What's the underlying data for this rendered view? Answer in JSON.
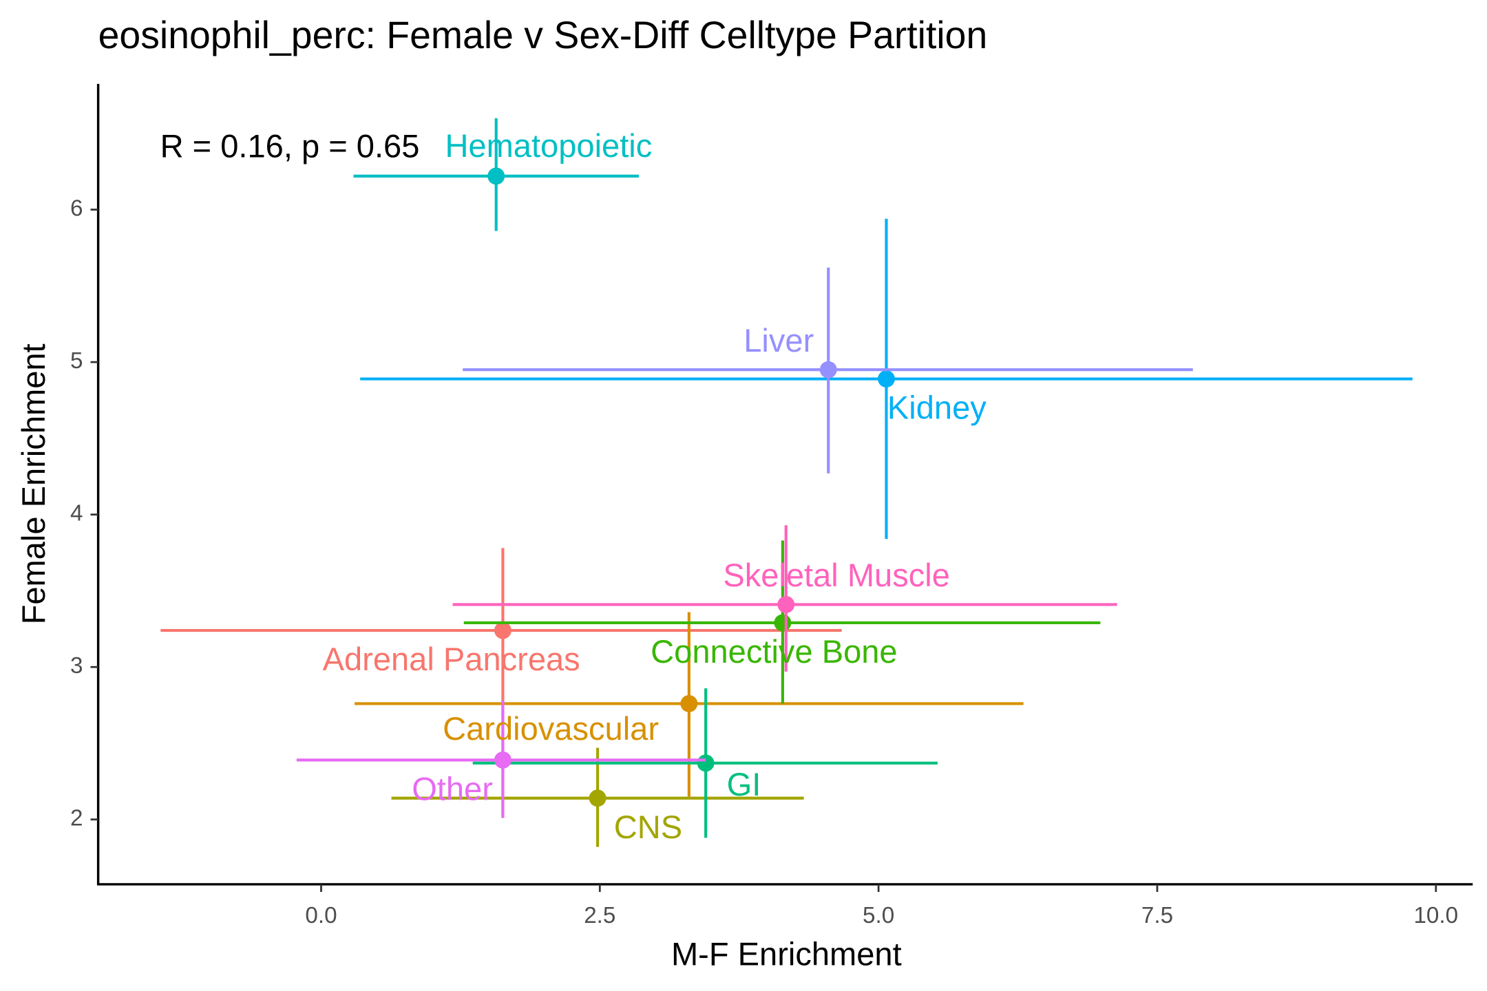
{
  "chart_data": {
    "type": "scatter",
    "title": "eosinophil_perc: Female v Sex-Diff Celltype Partition",
    "x_label": "M-F Enrichment",
    "y_label": "Female Enrichment",
    "annotation": "R = 0.16, p = 0.65",
    "xlim": [
      -2.0,
      10.33
    ],
    "ylim": [
      1.575,
      6.825
    ],
    "xticks": [
      {
        "value": 0,
        "label": "0.0"
      },
      2.5,
      {
        "value": 5,
        "label": "5.0"
      },
      7.5,
      {
        "value": 10,
        "label": "10.0"
      }
    ],
    "yticks": [
      2,
      3,
      4,
      5,
      6
    ],
    "points": [
      {
        "name": "Adrenal Pancreas",
        "color": "#F8766D",
        "x": 1.63,
        "y": 3.24,
        "x_low": -1.44,
        "x_high": 4.67,
        "y_low": 2.01,
        "y_high": 3.78
      },
      {
        "name": "Cardiovascular",
        "color": "#D89000",
        "x": 3.3,
        "y": 2.76,
        "x_low": 0.3,
        "x_high": 6.3,
        "y_low": 2.15,
        "y_high": 3.36
      },
      {
        "name": "CNS",
        "color": "#A3A500",
        "x": 2.48,
        "y": 2.14,
        "x_low": 0.63,
        "x_high": 4.33,
        "y_low": 1.82,
        "y_high": 2.47
      },
      {
        "name": "Connective Bone",
        "color": "#39B600",
        "x": 4.14,
        "y": 3.29,
        "x_low": 1.28,
        "x_high": 6.99,
        "y_low": 2.76,
        "y_high": 3.83
      },
      {
        "name": "GI",
        "color": "#00BF7D",
        "x": 3.45,
        "y": 2.37,
        "x_low": 1.36,
        "x_high": 5.53,
        "y_low": 1.88,
        "y_high": 2.86
      },
      {
        "name": "Hematopoietic",
        "color": "#00BFC4",
        "x": 1.57,
        "y": 6.22,
        "x_low": 0.29,
        "x_high": 2.85,
        "y_low": 5.86,
        "y_high": 6.6
      },
      {
        "name": "Kidney",
        "color": "#00B0F6",
        "x": 5.07,
        "y": 4.89,
        "x_low": 0.35,
        "x_high": 9.79,
        "y_low": 3.84,
        "y_high": 5.94
      },
      {
        "name": "Liver",
        "color": "#9590FF",
        "x": 4.55,
        "y": 4.95,
        "x_low": 1.27,
        "x_high": 7.82,
        "y_low": 4.27,
        "y_high": 5.62
      },
      {
        "name": "Other",
        "color": "#E76BF3",
        "x": 1.63,
        "y": 2.39,
        "x_low": -0.22,
        "x_high": 3.45,
        "y_low": 2.01,
        "y_high": 2.78
      },
      {
        "name": "Skeletal Muscle",
        "color": "#FF62BC",
        "x": 4.17,
        "y": 3.41,
        "x_low": 1.18,
        "x_high": 7.14,
        "y_low": 2.97,
        "y_high": 3.93
      }
    ]
  }
}
